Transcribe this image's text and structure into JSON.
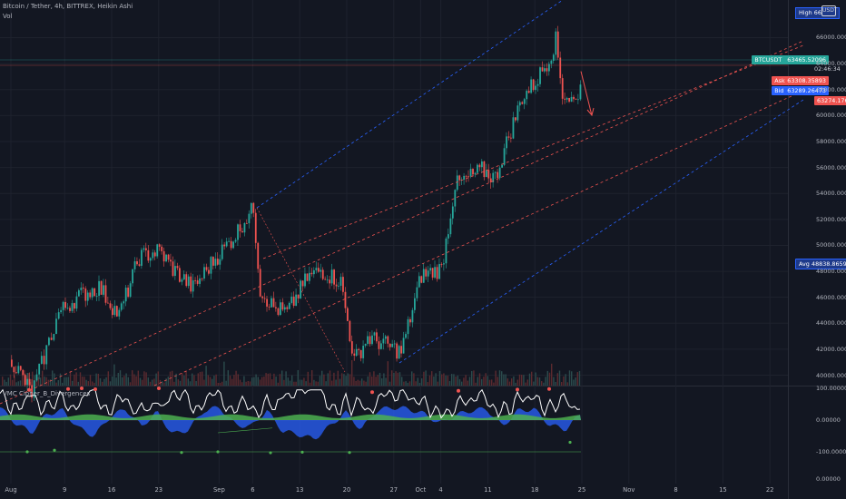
{
  "header": {
    "title": "Bitcoin / Tether, 4h, BITTREX, Heikin Ashi",
    "volume_label": "Vol"
  },
  "indicator": {
    "title": "VMC Cipher_B_Divergences",
    "ticks": [
      "100.00000",
      "0.00000",
      "-100.00000",
      "0.00000"
    ]
  },
  "price_tags": {
    "high_label": "High",
    "high_value": "66",
    "currency": "USDT",
    "symbol": "BTCUSDT",
    "last": "63465.52096",
    "countdown": "02:46:34",
    "ask_label": "Ask",
    "ask": "63308.35893",
    "bid_label": "Bid",
    "bid": "63289.26473",
    "low": "63274.17610",
    "avg_label": "Avg",
    "avg": "48838.86592"
  },
  "colors": {
    "background": "#131722",
    "up": "#26a69a",
    "down": "#ef5350",
    "vmc_wave": "#2962ff",
    "vmc_money": "#4caf50",
    "vmc_line": "#ffffff",
    "channel_red": "#ef5350",
    "channel_blue": "#2962ff"
  },
  "chart_data": {
    "type": "line",
    "chart_kind": "heikin-ashi candlestick",
    "y_axis": {
      "ticks": [
        "66000.00000",
        "64000.00000",
        "62000.00000",
        "60000.00000",
        "58000.00000",
        "56000.00000",
        "54000.00000",
        "52000.00000",
        "50000.00000",
        "48000.00000",
        "46000.00000",
        "44000.00000",
        "42000.00000",
        "40000.00000"
      ],
      "range": [
        39200,
        67500
      ]
    },
    "x_axis": {
      "ticks": [
        "Aug",
        "9",
        "16",
        "23",
        "Sep",
        "6",
        "13",
        "20",
        "27",
        "Oct",
        "4",
        "11",
        "18",
        "25",
        "Nov",
        "8",
        "15",
        "22"
      ]
    },
    "price_path": {
      "dates": [
        "Aug 1",
        "Aug 4",
        "Aug 8",
        "Aug 11",
        "Aug 14",
        "Aug 17",
        "Aug 20",
        "Aug 23",
        "Aug 25",
        "Aug 28",
        "Aug 31",
        "Sep 3",
        "Sep 5",
        "Sep 6",
        "Sep 7",
        "Sep 9",
        "Sep 11",
        "Sep 14",
        "Sep 16",
        "Sep 19",
        "Sep 21",
        "Sep 23",
        "Sep 25",
        "Sep 28",
        "Oct 1",
        "Oct 4",
        "Oct 6",
        "Oct 8",
        "Oct 10",
        "Oct 12",
        "Oct 14",
        "Oct 16",
        "Oct 18",
        "Oct 20",
        "Oct 21",
        "Oct 22",
        "Oct 24",
        "Oct 25"
      ],
      "close": [
        41200,
        38600,
        44800,
        46100,
        46800,
        44600,
        49100,
        49600,
        48200,
        46700,
        48800,
        50600,
        52200,
        52800,
        46600,
        45200,
        44800,
        47500,
        48100,
        47200,
        41100,
        42900,
        42500,
        41800,
        47700,
        48200,
        54600,
        55200,
        55800,
        55200,
        58400,
        61400,
        62600,
        64400,
        65800,
        61700,
        61000,
        63400
      ]
    },
    "channel": {
      "color_mid": "red dashed",
      "color_outer": "blue dashed",
      "projection_target": 60000
    },
    "vmc_cipher_b": {
      "range": [
        -100,
        100
      ],
      "wave": [
        40,
        -10,
        -40,
        20,
        30,
        -25,
        -50,
        10,
        35,
        -20,
        25,
        -45,
        -30,
        30,
        40,
        -15,
        -20,
        30,
        -35,
        -45,
        -60,
        -20,
        25,
        -30,
        30,
        40,
        35,
        20,
        -10,
        15,
        30,
        35,
        -20,
        30,
        35,
        -15,
        -30,
        20
      ]
    }
  }
}
